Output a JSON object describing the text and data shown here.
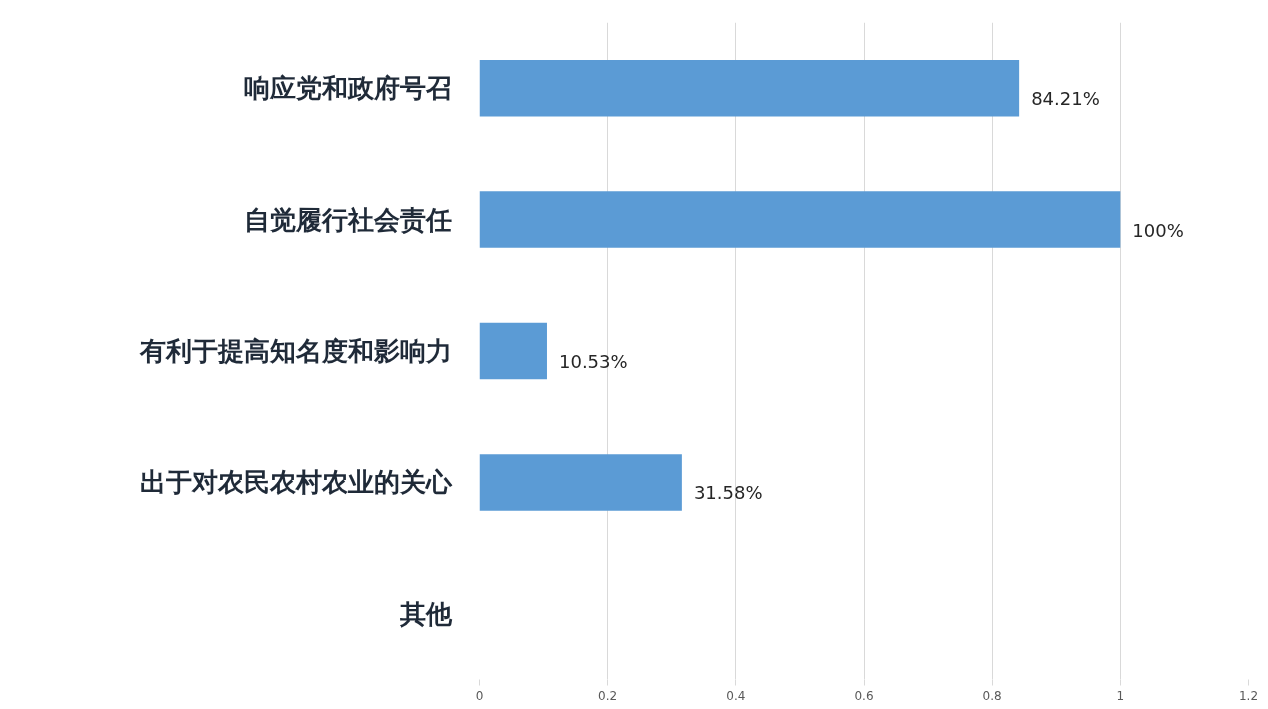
{
  "chart_data": {
    "type": "bar",
    "orientation": "horizontal",
    "categories": [
      "响应党和政府号召",
      "自觉履行社会责任",
      "有利于提高知名度和影响力",
      "出于对农民农村农业的关心",
      "其他"
    ],
    "values": [
      0.8421,
      1,
      0.1053,
      0.3158,
      null
    ],
    "value_labels": [
      "84.21%",
      "100%",
      "10.53%",
      "31.58%",
      null
    ],
    "color": "#5b9bd5",
    "xlim": [
      0,
      1.2
    ],
    "xticks": [
      0,
      0.2,
      0.4,
      0.6,
      0.8,
      1,
      1.2
    ],
    "grid": "x"
  }
}
